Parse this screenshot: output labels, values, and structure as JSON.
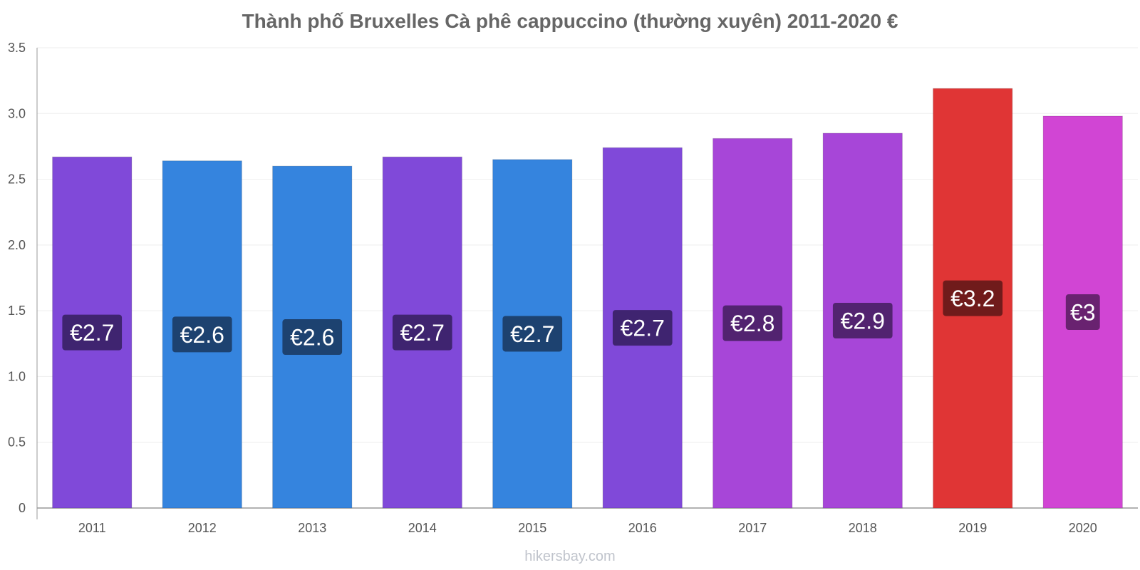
{
  "chart_data": {
    "type": "bar",
    "title": "Thành phố Bruxelles Cà phê cappuccino (thường xuyên) 2011-2020 €",
    "categories": [
      "2011",
      "2012",
      "2013",
      "2014",
      "2015",
      "2016",
      "2017",
      "2018",
      "2019",
      "2020"
    ],
    "values": [
      2.67,
      2.64,
      2.6,
      2.67,
      2.65,
      2.74,
      2.81,
      2.85,
      3.19,
      2.98
    ],
    "data_labels": [
      "€2.7",
      "€2.6",
      "€2.6",
      "€2.7",
      "€2.7",
      "€2.7",
      "€2.8",
      "€2.9",
      "€3.2",
      "€3"
    ],
    "colors": [
      "#8049d9",
      "#3584de",
      "#3584de",
      "#8049d9",
      "#3584de",
      "#8049d9",
      "#a746d8",
      "#a746d8",
      "#e03535",
      "#d145d4"
    ],
    "label_bg_colors": [
      "#3f2470",
      "#1d4270",
      "#1d4270",
      "#3f2470",
      "#1d4270",
      "#3f2470",
      "#522370",
      "#522370",
      "#701b1b",
      "#692270"
    ],
    "ylim": [
      0,
      3.5
    ],
    "yticks": [
      "0",
      "0.5",
      "1.0",
      "1.5",
      "2.0",
      "2.5",
      "3.0",
      "3.5"
    ],
    "xlabel": "",
    "ylabel": "",
    "grid": true,
    "legend": "none"
  },
  "watermark": "hikersbay.com"
}
